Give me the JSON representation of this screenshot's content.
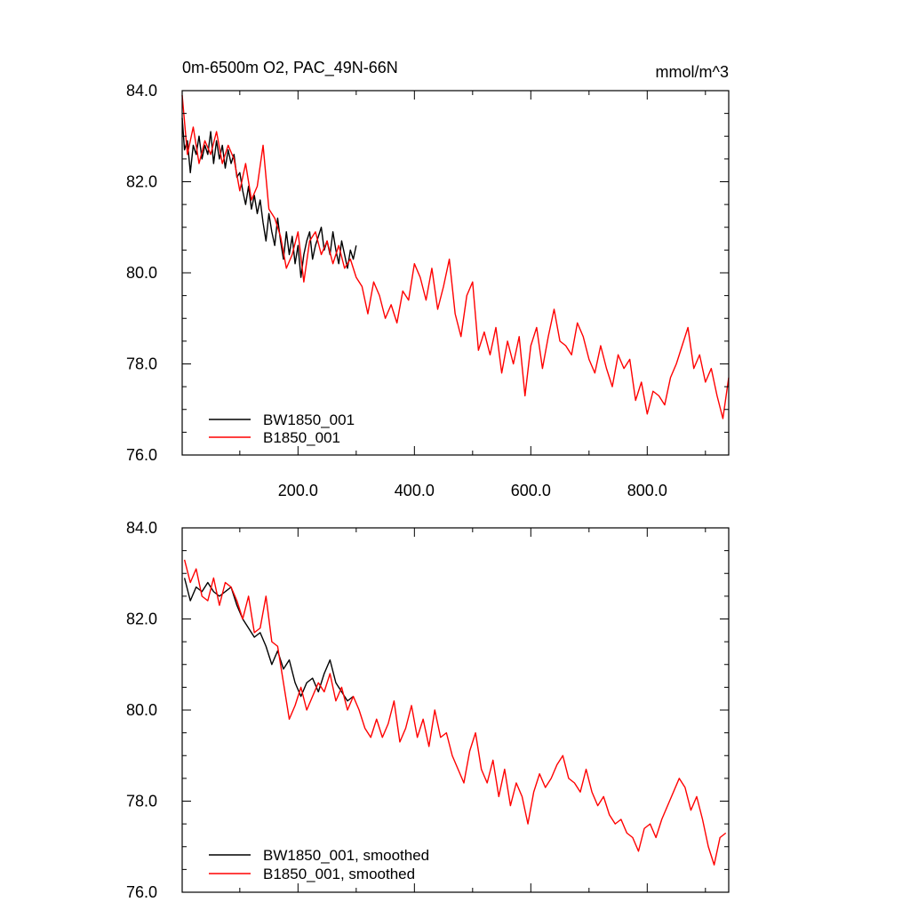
{
  "chart_data": [
    {
      "type": "line",
      "title": "0m-6500m O2, PAC_49N-66N",
      "units": "mmol/m^3",
      "xlabel": "",
      "ylabel": "",
      "xlim": [
        1,
        940
      ],
      "ylim": [
        76.0,
        84.0
      ],
      "x_ticks": [
        200,
        400,
        600,
        800
      ],
      "x_tick_labels": [
        "200.0",
        "400.0",
        "600.0",
        "800.0"
      ],
      "y_ticks": [
        76,
        78,
        80,
        82,
        84
      ],
      "y_tick_labels": [
        "76.0",
        "78.0",
        "80.0",
        "82.0",
        "84.0"
      ],
      "legend_position": "bottom-left",
      "series": [
        {
          "name": "BW1850_001",
          "color": "#000000",
          "x": [
            1,
            5,
            10,
            15,
            20,
            25,
            30,
            35,
            40,
            45,
            50,
            55,
            60,
            65,
            70,
            75,
            80,
            85,
            90,
            95,
            100,
            105,
            110,
            115,
            120,
            125,
            130,
            135,
            140,
            145,
            150,
            155,
            160,
            165,
            170,
            175,
            180,
            185,
            190,
            195,
            200,
            205,
            210,
            215,
            220,
            225,
            230,
            235,
            240,
            245,
            250,
            255,
            260,
            265,
            270,
            275,
            280,
            285,
            290,
            295,
            300
          ],
          "values": [
            83.4,
            82.7,
            82.9,
            82.2,
            82.8,
            82.6,
            83.0,
            82.5,
            82.8,
            82.6,
            83.1,
            82.4,
            82.9,
            82.5,
            82.8,
            82.3,
            82.7,
            82.4,
            82.6,
            82.1,
            82.2,
            81.8,
            81.5,
            81.9,
            81.4,
            81.7,
            81.3,
            81.6,
            81.1,
            80.7,
            81.3,
            80.9,
            80.6,
            81.2,
            80.7,
            80.3,
            80.9,
            80.4,
            80.8,
            80.2,
            80.6,
            79.9,
            80.4,
            80.7,
            80.9,
            80.3,
            80.6,
            80.8,
            81.0,
            80.5,
            80.7,
            80.4,
            80.9,
            80.5,
            80.2,
            80.7,
            80.4,
            80.1,
            80.5,
            80.3,
            80.6
          ]
        },
        {
          "name": "B1850_001",
          "color": "#ff0000",
          "x": [
            1,
            10,
            20,
            30,
            40,
            50,
            60,
            70,
            80,
            90,
            100,
            110,
            120,
            130,
            140,
            150,
            160,
            170,
            180,
            190,
            200,
            210,
            220,
            230,
            240,
            250,
            260,
            270,
            280,
            290,
            300,
            310,
            320,
            330,
            340,
            350,
            360,
            370,
            380,
            390,
            400,
            410,
            420,
            430,
            440,
            450,
            460,
            470,
            480,
            490,
            500,
            510,
            520,
            530,
            540,
            550,
            560,
            570,
            580,
            590,
            600,
            610,
            620,
            630,
            640,
            650,
            660,
            670,
            680,
            690,
            700,
            710,
            720,
            730,
            740,
            750,
            760,
            770,
            780,
            790,
            800,
            810,
            820,
            830,
            840,
            850,
            860,
            870,
            880,
            890,
            900,
            910,
            920,
            930,
            940
          ],
          "values": [
            83.9,
            82.6,
            83.2,
            82.4,
            82.9,
            82.6,
            83.1,
            82.4,
            82.8,
            82.5,
            81.8,
            82.4,
            81.6,
            81.9,
            82.8,
            81.4,
            81.2,
            80.8,
            80.1,
            80.4,
            80.9,
            79.8,
            80.7,
            80.9,
            80.4,
            80.7,
            80.2,
            80.6,
            80.1,
            80.3,
            79.9,
            79.7,
            79.1,
            79.8,
            79.5,
            79.0,
            79.3,
            78.9,
            79.6,
            79.4,
            80.2,
            79.9,
            79.4,
            80.1,
            79.2,
            79.7,
            80.3,
            79.1,
            78.6,
            79.5,
            79.8,
            78.3,
            78.7,
            78.2,
            78.8,
            77.8,
            78.5,
            78.0,
            78.6,
            77.3,
            78.4,
            78.8,
            77.9,
            78.6,
            79.2,
            78.5,
            78.4,
            78.2,
            78.9,
            78.6,
            78.1,
            77.8,
            78.4,
            77.9,
            77.5,
            78.2,
            77.9,
            78.1,
            77.2,
            77.6,
            76.9,
            77.4,
            77.3,
            77.1,
            77.7,
            78.0,
            78.4,
            78.8,
            77.9,
            78.2,
            77.6,
            77.9,
            77.3,
            76.8,
            77.7
          ]
        }
      ]
    },
    {
      "type": "line",
      "title": "",
      "xlabel": "",
      "ylabel": "",
      "xlim": [
        1,
        940
      ],
      "ylim": [
        76.0,
        84.0
      ],
      "x_ticks": [
        200,
        400,
        600,
        800
      ],
      "y_ticks": [
        76,
        78,
        80,
        82,
        84
      ],
      "y_tick_labels": [
        "76.0",
        "78.0",
        "80.0",
        "82.0",
        "84.0"
      ],
      "legend_position": "bottom-left",
      "series": [
        {
          "name": "BW1850_001, smoothed",
          "color": "#000000",
          "x": [
            5,
            15,
            25,
            35,
            45,
            55,
            65,
            75,
            85,
            95,
            105,
            115,
            125,
            135,
            145,
            155,
            165,
            175,
            185,
            195,
            205,
            215,
            225,
            235,
            245,
            255,
            265,
            275,
            285,
            295
          ],
          "values": [
            82.9,
            82.4,
            82.7,
            82.6,
            82.8,
            82.6,
            82.5,
            82.6,
            82.7,
            82.3,
            82.0,
            81.8,
            81.6,
            81.7,
            81.4,
            81.0,
            81.3,
            80.9,
            81.1,
            80.6,
            80.3,
            80.6,
            80.7,
            80.4,
            80.8,
            81.1,
            80.6,
            80.4,
            80.2,
            80.3
          ]
        },
        {
          "name": "B1850_001, smoothed",
          "color": "#ff0000",
          "x": [
            5,
            15,
            25,
            35,
            45,
            55,
            65,
            75,
            85,
            95,
            105,
            115,
            125,
            135,
            145,
            155,
            165,
            175,
            185,
            195,
            205,
            215,
            225,
            235,
            245,
            255,
            265,
            275,
            285,
            295,
            305,
            315,
            325,
            335,
            345,
            355,
            365,
            375,
            385,
            395,
            405,
            415,
            425,
            435,
            445,
            455,
            465,
            475,
            485,
            495,
            505,
            515,
            525,
            535,
            545,
            555,
            565,
            575,
            585,
            595,
            605,
            615,
            625,
            635,
            645,
            655,
            665,
            675,
            685,
            695,
            705,
            715,
            725,
            735,
            745,
            755,
            765,
            775,
            785,
            795,
            805,
            815,
            825,
            835,
            845,
            855,
            865,
            875,
            885,
            895,
            905,
            915,
            925,
            935
          ],
          "values": [
            83.3,
            82.8,
            83.1,
            82.5,
            82.4,
            82.9,
            82.3,
            82.8,
            82.7,
            82.4,
            82.0,
            82.5,
            81.7,
            81.8,
            82.5,
            81.5,
            81.4,
            80.6,
            79.8,
            80.1,
            80.5,
            80.0,
            80.3,
            80.6,
            80.4,
            80.8,
            80.2,
            80.5,
            80.0,
            80.3,
            80.0,
            79.6,
            79.4,
            79.8,
            79.4,
            79.7,
            80.2,
            79.3,
            79.6,
            80.1,
            79.4,
            79.8,
            79.2,
            80.0,
            79.4,
            79.5,
            79.0,
            78.7,
            78.4,
            79.1,
            79.5,
            78.7,
            78.4,
            78.9,
            78.1,
            78.7,
            77.9,
            78.4,
            78.1,
            77.5,
            78.2,
            78.6,
            78.3,
            78.5,
            78.8,
            79.0,
            78.5,
            78.4,
            78.2,
            78.7,
            78.2,
            77.9,
            78.1,
            77.7,
            77.5,
            77.6,
            77.3,
            77.2,
            76.9,
            77.4,
            77.5,
            77.2,
            77.6,
            77.9,
            78.2,
            78.5,
            78.3,
            77.8,
            78.1,
            77.6,
            77.0,
            76.6,
            77.2,
            77.3
          ]
        }
      ]
    }
  ]
}
